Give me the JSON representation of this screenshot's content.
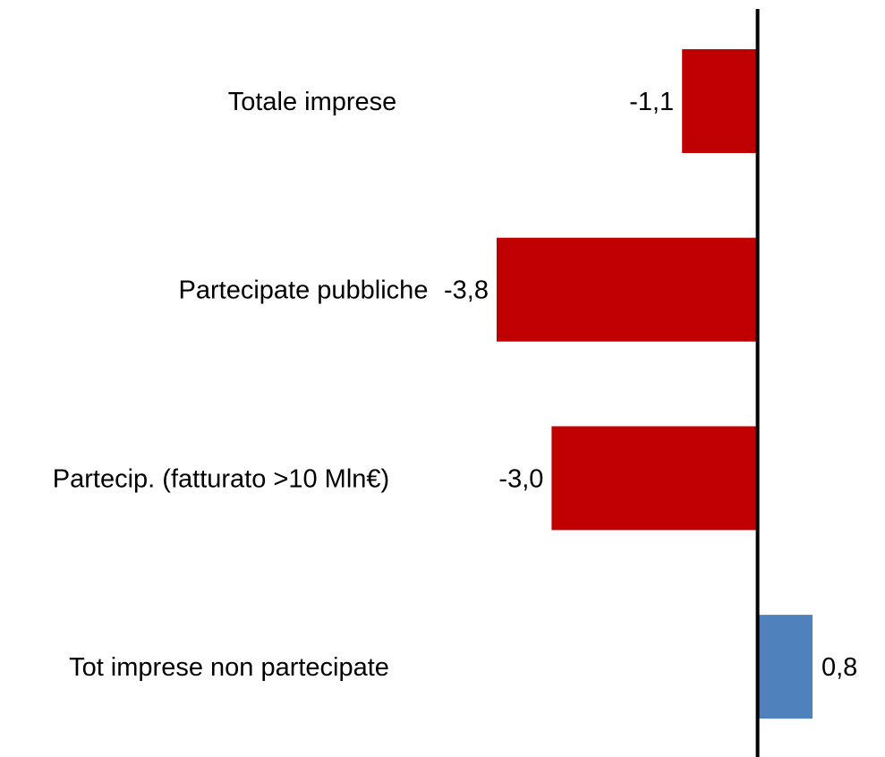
{
  "chart_data": {
    "type": "bar",
    "orientation": "horizontal",
    "categories": [
      "Totale imprese",
      "Partecipate pubbliche",
      "Partecip. (fatturato >10 Mln€)",
      "Tot imprese non partecipate"
    ],
    "values": [
      -1.1,
      -3.8,
      -3.0,
      0.8
    ],
    "value_labels": [
      "-1,1",
      "-3,8",
      "-3,0",
      "0,8"
    ],
    "xlim": [
      -3.8,
      0.8
    ],
    "title": "",
    "xlabel": "",
    "ylabel": "",
    "grid": false,
    "legend": "none",
    "colors": {
      "negative": "#c00000",
      "positive": "#4f81bd",
      "axis": "#000000"
    }
  }
}
